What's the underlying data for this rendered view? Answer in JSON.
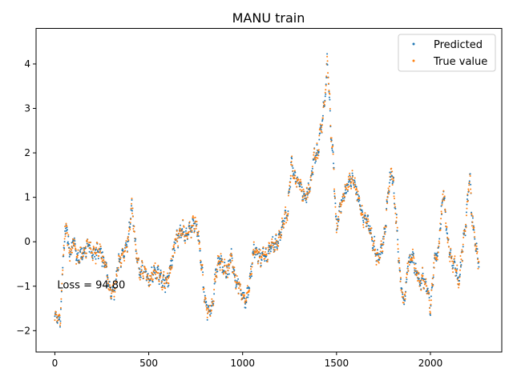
{
  "chart_data": {
    "type": "scatter",
    "title": "MANU train",
    "xlabel": "",
    "ylabel": "",
    "xlim": [
      -100,
      2380
    ],
    "ylim": [
      -2.48,
      4.8
    ],
    "xticks": [
      0,
      500,
      1000,
      1500,
      2000
    ],
    "yticks": [
      -2,
      -1,
      0,
      1,
      2,
      3,
      4
    ],
    "grid": false,
    "legend_position": "top-right",
    "annotation": "Loss = 94.80",
    "annotation_at": {
      "x": 0,
      "y": -1.05
    },
    "n_points": 2260,
    "key_points": {
      "x": [
        0,
        15,
        30,
        45,
        60,
        80,
        100,
        120,
        150,
        180,
        200,
        230,
        260,
        280,
        300,
        320,
        340,
        370,
        390,
        410,
        430,
        450,
        470,
        500,
        530,
        560,
        580,
        600,
        620,
        640,
        660,
        680,
        700,
        720,
        740,
        760,
        780,
        800,
        820,
        840,
        860,
        880,
        900,
        920,
        940,
        960,
        980,
        1000,
        1020,
        1040,
        1060,
        1080,
        1100,
        1130,
        1160,
        1190,
        1220,
        1240,
        1260,
        1280,
        1300,
        1320,
        1340,
        1360,
        1380,
        1400,
        1420,
        1440,
        1450,
        1460,
        1470,
        1480,
        1490,
        1500,
        1520,
        1540,
        1560,
        1580,
        1600,
        1620,
        1640,
        1660,
        1680,
        1700,
        1720,
        1740,
        1760,
        1780,
        1790,
        1800,
        1820,
        1840,
        1860,
        1880,
        1900,
        1920,
        1940,
        1960,
        1980,
        2000,
        2020,
        2040,
        2060,
        2070,
        2090,
        2110,
        2130,
        2150,
        2170,
        2190,
        2210,
        2220,
        2240,
        2260
      ],
      "y": [
        -1.6,
        -1.8,
        -1.7,
        -0.3,
        0.4,
        -0.3,
        0.0,
        -0.4,
        -0.2,
        -0.1,
        -0.3,
        -0.2,
        -0.4,
        -0.7,
        -1.2,
        -1.1,
        -0.4,
        -0.3,
        0.0,
        0.85,
        -0.1,
        -0.7,
        -0.6,
        -0.9,
        -0.6,
        -0.8,
        -0.9,
        -0.9,
        -0.5,
        0.0,
        0.1,
        0.3,
        0.1,
        0.3,
        0.4,
        0.3,
        -0.5,
        -1.4,
        -1.6,
        -1.5,
        -0.6,
        -0.4,
        -0.6,
        -0.7,
        -0.3,
        -0.8,
        -1.0,
        -1.2,
        -1.4,
        -0.8,
        -0.2,
        -0.3,
        -0.4,
        -0.3,
        -0.1,
        0.0,
        0.5,
        0.6,
        1.8,
        1.4,
        1.3,
        1.1,
        1.0,
        1.3,
        1.9,
        2.0,
        2.6,
        3.3,
        4.1,
        3.5,
        2.5,
        2.0,
        1.2,
        0.3,
        0.8,
        1.0,
        1.3,
        1.4,
        1.2,
        0.9,
        0.6,
        0.5,
        0.3,
        -0.1,
        -0.4,
        -0.2,
        0.3,
        1.3,
        1.6,
        1.4,
        0.4,
        -0.9,
        -1.4,
        -0.5,
        -0.3,
        -0.6,
        -0.9,
        -0.8,
        -1.0,
        -1.5,
        -0.5,
        -0.2,
        0.7,
        1.1,
        0.1,
        -0.4,
        -0.5,
        -0.9,
        -0.2,
        0.4,
        1.6,
        0.6,
        -0.1,
        -0.5
      ]
    },
    "series": [
      {
        "name": "Predicted",
        "color": "#1f77b4",
        "marker": "dot"
      },
      {
        "name": "True value",
        "color": "#ff7f0e",
        "marker": "dot"
      }
    ]
  }
}
